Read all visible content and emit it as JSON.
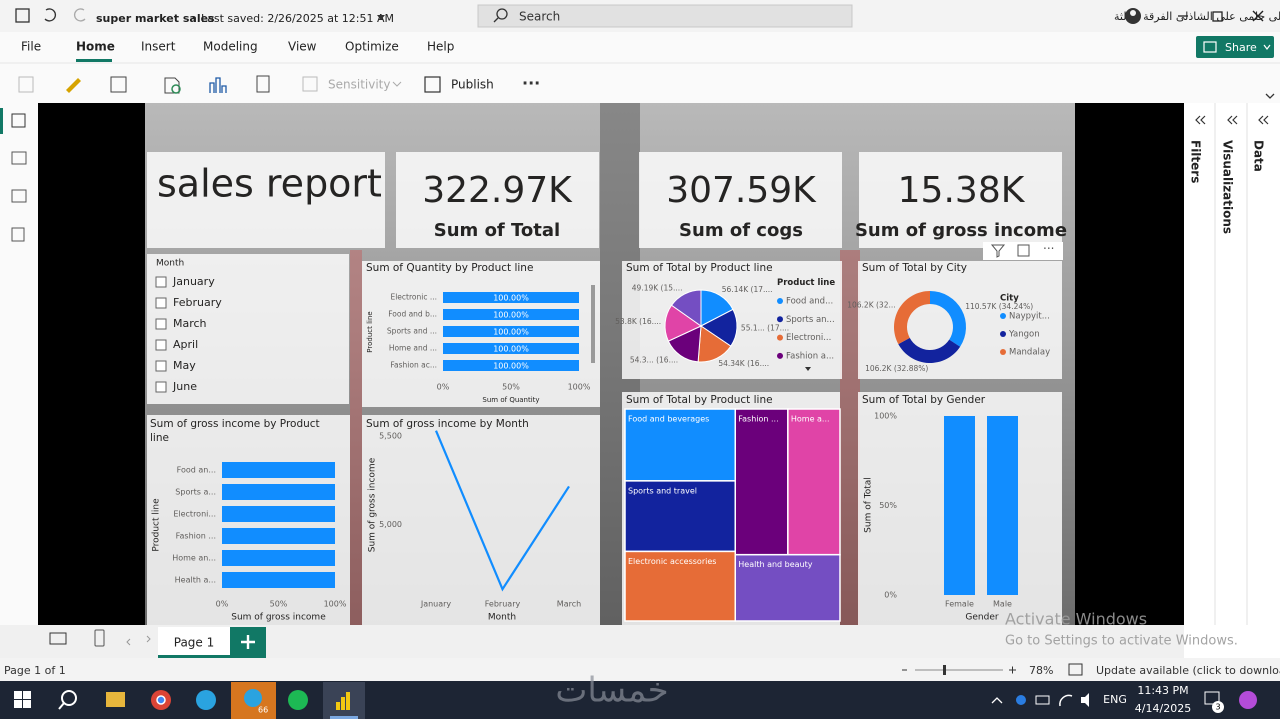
{
  "title_bar": {
    "document": "super market sales",
    "saved": "Last saved: 2/26/2025 at 12:51 AM",
    "search": "Search",
    "user": "كريم على حلمى على الشاذلى الفرقة الثالثة"
  },
  "menu": {
    "tabs": [
      "File",
      "Home",
      "Insert",
      "Modeling",
      "View",
      "Optimize",
      "Help"
    ],
    "share": "Share"
  },
  "ribbon": {
    "sensitivity": "Sensitivity",
    "publish": "Publish"
  },
  "panes": [
    "Filters",
    "Visualizations",
    "Data"
  ],
  "report": {
    "title": "sales report",
    "cards": [
      {
        "value": "322.97K",
        "label": "Sum of Total"
      },
      {
        "value": "307.59K",
        "label": "Sum of cogs"
      },
      {
        "value": "15.38K",
        "label": "Sum of gross income"
      }
    ],
    "slicer": {
      "title": "Month",
      "items": [
        "January",
        "February",
        "March",
        "April",
        "May",
        "June"
      ]
    },
    "quantity_by_product": {
      "type": "bar",
      "title": "Sum of Quantity by Product line",
      "x_label": "Sum of Quantity",
      "y_label": "Product line",
      "categories": [
        "Electronic ...",
        "Food and b...",
        "Sports and ...",
        "Home and ...",
        "Fashion ac..."
      ],
      "values": [
        100,
        100,
        100,
        100,
        100
      ],
      "value_labels": [
        "100.00%",
        "100.00%",
        "100.00%",
        "100.00%",
        "100.00%"
      ],
      "xlim": [
        0,
        100
      ],
      "xticks": [
        {
          "value": 0,
          "label": "0%"
        },
        {
          "value": 50,
          "label": "50%"
        },
        {
          "value": 100,
          "label": "100%"
        }
      ],
      "color": "#118DFF"
    },
    "total_by_product_pie": {
      "type": "pie",
      "title": "Sum of Total by Product line",
      "legend_title": "Product line",
      "categories": [
        "Food and...",
        "Sports an...",
        "Electroni...",
        "Fashion a...",
        null,
        null
      ],
      "values": [
        56.14,
        55.1,
        54.34,
        54.3,
        53.8,
        49.19
      ],
      "value_labels": [
        "56.14K (17....",
        "55.1... (17....",
        "54.34K (16....",
        "54.3... (16....",
        "53.8K (16....",
        "49.19K (15...."
      ],
      "colors": [
        "#118DFF",
        "#12239E",
        "#E66C37",
        "#6B007B",
        "#E044A7",
        "#744EC2"
      ]
    },
    "total_by_city": {
      "type": "donut",
      "title": "Sum of Total by City",
      "legend_title": "City",
      "categories": [
        "Naypyit...",
        "Yangon",
        "Mandalay"
      ],
      "values": [
        110.57,
        106.2,
        106.2
      ],
      "value_labels": [
        "110.57K (34.24%)",
        "106.2K (32.88%)",
        "106.2K (32..."
      ],
      "colors": [
        "#118DFF",
        "#12239E",
        "#E66C37"
      ]
    },
    "gross_income_by_product": {
      "type": "bar",
      "title": [
        "Sum of gross income by Product",
        "line"
      ],
      "x_label": "Sum of gross income",
      "y_label": "Product line",
      "categories": [
        "Food an...",
        "Sports a...",
        "Electroni...",
        "Fashion ...",
        "Home an...",
        "Health a..."
      ],
      "values": [
        100,
        100,
        100,
        100,
        100,
        100
      ],
      "xlim": [
        0,
        100
      ],
      "xticks": [
        {
          "value": 0,
          "label": "0%"
        },
        {
          "value": 50,
          "label": "50%"
        },
        {
          "value": 100,
          "label": "100%"
        }
      ],
      "color": "#118DFF"
    },
    "gross_income_by_month": {
      "type": "line",
      "title": "Sum of gross income by Month",
      "x_label": "Month",
      "y_label": "Sum of gross income",
      "categories": [
        "January",
        "February",
        "March"
      ],
      "values": [
        5530,
        4635,
        5215
      ],
      "ylim": [
        4600,
        5650
      ],
      "yticks": [
        {
          "value": 5000,
          "label": "5,000"
        },
        {
          "value": 5500,
          "label": "5,500"
        }
      ],
      "color": "#118DFF"
    },
    "total_by_product_treemap": {
      "type": "treemap",
      "title": "Sum of Total by Product line",
      "categories": [
        "Food and beverages",
        "Sports and travel",
        "Electronic accessories",
        "Fashion ...",
        "Home a...",
        "Health and beauty"
      ],
      "values": [
        56.14,
        55.1,
        54.34,
        54.3,
        53.8,
        49.19
      ],
      "colors": [
        "#118DFF",
        "#12239E",
        "#E66C37",
        "#6B007B",
        "#E044A7",
        "#744EC2"
      ]
    },
    "total_by_gender": {
      "type": "column",
      "title": "Sum of Total by Gender",
      "x_label": "Gender",
      "y_label": "Sum of Total",
      "categories": [
        "Female",
        "Male"
      ],
      "values": [
        100,
        100
      ],
      "ylim": [
        0,
        100
      ],
      "yticks": [
        {
          "value": 0,
          "label": "0%"
        },
        {
          "value": 50,
          "label": "50%"
        },
        {
          "value": 100,
          "label": "100%"
        }
      ],
      "color": "#118DFF"
    }
  },
  "page_tab": "Page 1",
  "status": {
    "page": "Page 1 of 1",
    "zoom": "78%",
    "update": "Update available (click to download)"
  },
  "watermark": {
    "title": "Activate Windows",
    "text": "Go to Settings to activate Windows.",
    "logo": "خمسات"
  },
  "taskbar": {
    "telegram_badge": "66",
    "language": "ENG",
    "time": "11:43 PM",
    "date": "4/14/2025",
    "notifications": "3"
  }
}
